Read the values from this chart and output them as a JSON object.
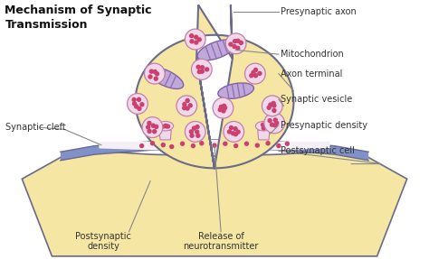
{
  "title": "Mechanism of Synaptic\nTransmission",
  "bg_color": "#ffffff",
  "axon_fill": "#f5e6a3",
  "axon_border": "#6a6a8a",
  "post_fill": "#f5e6a3",
  "post_border": "#6a6a8a",
  "blue_band_color": "#8090c8",
  "mito_fill": "#c0a8d8",
  "mito_border": "#8060a8",
  "mito_inner": "#9070b8",
  "vesicle_fill": "#f0d8ea",
  "vesicle_border": "#c080a8",
  "vesicle_dot": "#cc4070",
  "cleft_fill": "#f5f0f5",
  "density_fill": "#f0d8ea",
  "density_border": "#c080a8",
  "label_color": "#333333",
  "line_color": "#888888",
  "labels": {
    "presynaptic_axon": "Presynaptic axon",
    "mitochondrion": "Mitochondrion",
    "axon_terminal": "Axon terminal",
    "synaptic_vesicle": "Synaptic vesicle",
    "presynaptic_density": "Presynaptic density",
    "postsynaptic_cell": "Postsynaptic cell",
    "synaptic_cleft": "Synaptic cleft",
    "postsynaptic_density": "Postsynaptic\ndensity",
    "release_neurotransmitter": "Release of\nneurotransmitter"
  }
}
